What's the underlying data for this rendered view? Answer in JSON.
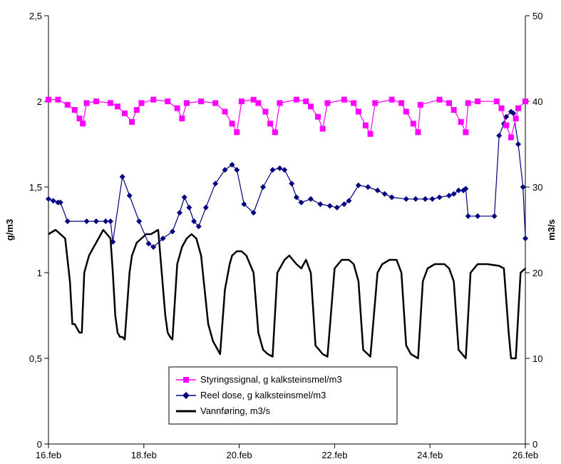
{
  "chart_data": {
    "type": "line",
    "xlabel": "",
    "ylabel_left": "g/m3",
    "ylabel_right": "m3/s",
    "ylim_left": [
      0,
      2.5
    ],
    "ylim_right": [
      0,
      50
    ],
    "yticks_left": [
      "0",
      "0,5",
      "1",
      "1,5",
      "2",
      "2,5"
    ],
    "yticks_right": [
      "0",
      "10",
      "20",
      "30",
      "40",
      "50"
    ],
    "xlim_days": [
      16,
      26
    ],
    "xticks": [
      "16.feb",
      "18.feb",
      "20.feb",
      "22.feb",
      "24.feb",
      "26.feb"
    ],
    "legend_position": "bottom-center",
    "series": [
      {
        "name": "Styringssignal, g kalksteinsmel/m3",
        "axis": "left",
        "color": "#ff00ff",
        "marker": "square",
        "x": [
          16.0,
          16.2,
          16.4,
          16.55,
          16.65,
          16.72,
          16.8,
          17.0,
          17.3,
          17.45,
          17.6,
          17.75,
          17.85,
          17.95,
          18.2,
          18.5,
          18.7,
          18.8,
          18.9,
          19.2,
          19.5,
          19.7,
          19.85,
          19.95,
          20.05,
          20.3,
          20.4,
          20.55,
          20.65,
          20.75,
          20.85,
          21.2,
          21.4,
          21.5,
          21.65,
          21.75,
          21.85,
          22.2,
          22.4,
          22.5,
          22.65,
          22.75,
          22.85,
          23.2,
          23.4,
          23.5,
          23.65,
          23.75,
          23.8,
          24.2,
          24.4,
          24.5,
          24.65,
          24.75,
          24.8,
          25.0,
          25.4,
          25.5,
          25.6,
          25.7,
          25.8,
          25.85,
          26.0
        ],
        "values": [
          2.01,
          2.01,
          1.98,
          1.95,
          1.9,
          1.87,
          1.99,
          2.0,
          1.99,
          1.97,
          1.93,
          1.88,
          1.95,
          1.99,
          2.01,
          2.0,
          1.96,
          1.9,
          1.99,
          2.0,
          1.99,
          1.94,
          1.87,
          1.82,
          2.0,
          2.01,
          1.99,
          1.94,
          1.87,
          1.82,
          1.99,
          2.01,
          2.0,
          1.97,
          1.91,
          1.84,
          1.99,
          2.01,
          1.99,
          1.94,
          1.86,
          1.81,
          1.99,
          2.01,
          1.99,
          1.94,
          1.87,
          1.82,
          1.98,
          2.01,
          1.99,
          1.95,
          1.88,
          1.82,
          1.99,
          2.0,
          2.0,
          1.96,
          1.86,
          1.79,
          1.9,
          1.96,
          2.0
        ]
      },
      {
        "name": "Reel dose, g kalksteinsmel/m3",
        "axis": "left",
        "color": "#000080",
        "marker": "diamond",
        "x": [
          16.0,
          16.1,
          16.2,
          16.25,
          16.4,
          16.8,
          17.0,
          17.2,
          17.3,
          17.35,
          17.55,
          17.7,
          17.9,
          18.1,
          18.2,
          18.4,
          18.6,
          18.75,
          18.85,
          18.95,
          19.05,
          19.15,
          19.3,
          19.5,
          19.7,
          19.85,
          19.95,
          20.1,
          20.3,
          20.5,
          20.7,
          20.85,
          20.95,
          21.1,
          21.2,
          21.3,
          21.5,
          21.7,
          21.9,
          22.05,
          22.2,
          22.3,
          22.5,
          22.7,
          22.9,
          23.05,
          23.2,
          23.5,
          23.7,
          23.9,
          24.05,
          24.2,
          24.4,
          24.5,
          24.6,
          24.7,
          24.75,
          24.8,
          25.0,
          25.35,
          25.45,
          25.55,
          25.6,
          25.7,
          25.75,
          25.85,
          25.95,
          26.0
        ],
        "values": [
          1.43,
          1.42,
          1.41,
          1.41,
          1.3,
          1.3,
          1.3,
          1.3,
          1.3,
          1.18,
          1.56,
          1.45,
          1.3,
          1.17,
          1.15,
          1.2,
          1.24,
          1.35,
          1.44,
          1.38,
          1.3,
          1.27,
          1.38,
          1.52,
          1.6,
          1.63,
          1.6,
          1.4,
          1.35,
          1.5,
          1.6,
          1.61,
          1.6,
          1.52,
          1.44,
          1.41,
          1.43,
          1.4,
          1.39,
          1.38,
          1.4,
          1.42,
          1.51,
          1.5,
          1.48,
          1.46,
          1.44,
          1.43,
          1.43,
          1.43,
          1.43,
          1.44,
          1.45,
          1.46,
          1.48,
          1.48,
          1.49,
          1.33,
          1.33,
          1.33,
          1.8,
          1.87,
          1.91,
          1.94,
          1.93,
          1.75,
          1.5,
          1.2
        ]
      },
      {
        "name": "Vannføring, m3/s",
        "axis": "right",
        "color": "#000000",
        "marker": "none",
        "x": [
          16.0,
          16.15,
          16.25,
          16.35,
          16.45,
          16.5,
          16.55,
          16.6,
          16.65,
          16.7,
          16.75,
          16.85,
          17.0,
          17.15,
          17.3,
          17.35,
          17.4,
          17.45,
          17.5,
          17.55,
          17.6,
          17.7,
          17.75,
          17.85,
          17.95,
          18.05,
          18.15,
          18.3,
          18.45,
          18.5,
          18.55,
          18.6,
          18.7,
          18.75,
          18.8,
          18.9,
          19.0,
          19.1,
          19.2,
          19.35,
          19.45,
          19.55,
          19.6,
          19.7,
          19.8,
          19.85,
          19.95,
          20.05,
          20.15,
          20.3,
          20.4,
          20.5,
          20.6,
          20.7,
          20.8,
          20.95,
          21.05,
          21.2,
          21.3,
          21.4,
          21.5,
          21.6,
          21.75,
          21.85,
          22.0,
          22.15,
          22.3,
          22.4,
          22.5,
          22.6,
          22.75,
          22.9,
          23.0,
          23.15,
          23.3,
          23.4,
          23.5,
          23.6,
          23.75,
          23.85,
          23.95,
          24.1,
          24.3,
          24.4,
          24.5,
          24.6,
          24.75,
          24.85,
          25.0,
          25.2,
          25.45,
          25.55,
          25.65,
          25.7,
          25.8,
          25.9,
          26.0
        ],
        "values": [
          24.5,
          25,
          24.5,
          24,
          19,
          14,
          14,
          13.5,
          13,
          13,
          20,
          22,
          23.5,
          25,
          24,
          20,
          15,
          13,
          12.5,
          12.5,
          12.2,
          20,
          22,
          23.5,
          24,
          24.5,
          24.5,
          25,
          15,
          13,
          12.5,
          12.2,
          21,
          22,
          23,
          24,
          24.5,
          24,
          22,
          14,
          12,
          11,
          10.5,
          18,
          21,
          22,
          22.5,
          22.5,
          22,
          20,
          13,
          11,
          10.5,
          10.2,
          20,
          21.5,
          22,
          21,
          20.5,
          21.5,
          20,
          11.5,
          10.5,
          10.2,
          20.5,
          21.5,
          21.5,
          21,
          19,
          11,
          10.2,
          20,
          21,
          21.5,
          21.5,
          20,
          11.5,
          10.5,
          10,
          19,
          20.5,
          21,
          21,
          20.5,
          19,
          11,
          10,
          20,
          21,
          21,
          20.8,
          20.5,
          13,
          10,
          10,
          20,
          20.5
        ]
      }
    ]
  }
}
